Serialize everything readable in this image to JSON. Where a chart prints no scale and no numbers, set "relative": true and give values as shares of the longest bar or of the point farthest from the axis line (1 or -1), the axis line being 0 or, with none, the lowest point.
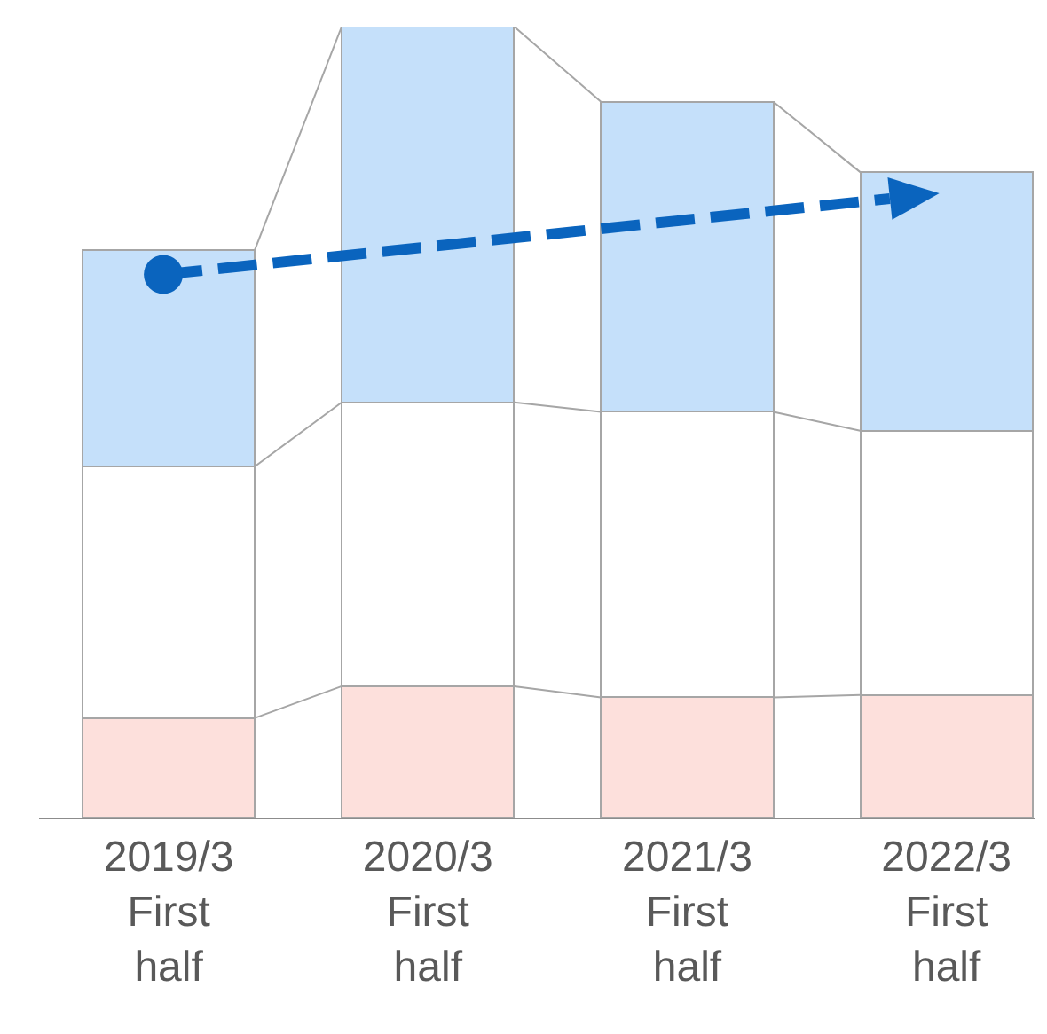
{
  "chart_data": {
    "type": "bar",
    "relative": true,
    "stacked": true,
    "categories": [
      "2019/3 First half",
      "2020/3 First half",
      "2021/3 First half",
      "2022/3 First half"
    ],
    "series": [
      {
        "color": "#fde0dc",
        "values": [
          0.126,
          0.166,
          0.152,
          0.155
        ]
      },
      {
        "color": "#ffffff",
        "values": [
          0.318,
          0.359,
          0.361,
          0.334
        ]
      },
      {
        "color": "#c5e0fa",
        "values": [
          0.274,
          0.475,
          0.392,
          0.327
        ]
      }
    ]
  }
}
